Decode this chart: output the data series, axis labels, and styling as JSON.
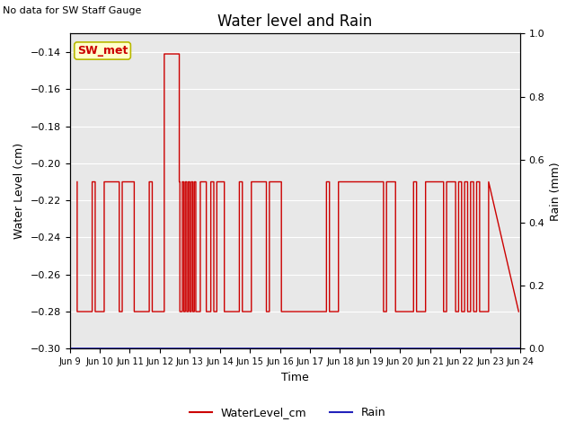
{
  "title": "Water level and Rain",
  "top_left_text": "No data for SW Staff Gauge",
  "ylabel_left": "Water Level (cm)",
  "ylabel_right": "Rain (mm)",
  "xlabel": "Time",
  "ylim_left": [
    -0.3,
    -0.13
  ],
  "ylim_right": [
    0.0,
    1.0
  ],
  "plot_bg_color": "#e8e8e8",
  "annotation_label": "SW_met",
  "water_color": "#cc0000",
  "rain_color": "#2222bb",
  "legend_entries": [
    "WaterLevel_cm",
    "Rain"
  ],
  "xtick_labels": [
    "Jun 9",
    "Jun 10",
    "Jun 11",
    "Jun 12",
    "Jun 13",
    "Jun 14",
    "Jun 15",
    "Jun 16",
    "Jun 17",
    "Jun 18",
    "Jun 19",
    "Jun 20",
    "Jun 21",
    "Jun 22",
    "Jun 23",
    "Jun 24"
  ],
  "xlim": [
    9.0,
    24.0
  ],
  "yticks_left": [
    -0.3,
    -0.28,
    -0.26,
    -0.24,
    -0.22,
    -0.2,
    -0.18,
    -0.16,
    -0.14
  ],
  "yticks_right": [
    0.0,
    0.2,
    0.4,
    0.6,
    0.8,
    1.0
  ],
  "water_x": [
    9.25,
    9.25,
    9.75,
    9.75,
    9.85,
    9.85,
    10.15,
    10.15,
    10.65,
    10.65,
    10.75,
    10.75,
    11.15,
    11.15,
    11.65,
    11.65,
    11.75,
    11.75,
    12.15,
    12.15,
    12.65,
    12.65,
    12.67,
    12.67,
    12.75,
    12.75,
    12.8,
    12.8,
    12.85,
    12.85,
    12.9,
    12.9,
    12.95,
    12.95,
    13.0,
    13.0,
    13.05,
    13.05,
    13.1,
    13.1,
    13.15,
    13.15,
    13.2,
    13.2,
    13.35,
    13.35,
    13.55,
    13.55,
    13.7,
    13.7,
    13.8,
    13.8,
    13.9,
    13.9,
    14.15,
    14.15,
    14.65,
    14.65,
    14.75,
    14.75,
    15.05,
    15.05,
    15.55,
    15.55,
    15.65,
    15.65,
    16.05,
    16.05,
    17.55,
    17.55,
    17.65,
    17.65,
    17.95,
    17.95,
    19.45,
    19.45,
    19.55,
    19.55,
    19.85,
    19.85,
    20.45,
    20.45,
    20.55,
    20.55,
    20.85,
    20.85,
    21.45,
    21.45,
    21.55,
    21.55,
    21.85,
    21.85,
    21.95,
    21.95,
    22.05,
    22.05,
    22.15,
    22.15,
    22.25,
    22.25,
    22.35,
    22.35,
    22.45,
    22.45,
    22.55,
    22.55,
    22.65,
    22.65,
    22.95,
    22.95,
    23.95
  ],
  "water_y": [
    -0.21,
    -0.28,
    -0.28,
    -0.21,
    -0.21,
    -0.28,
    -0.28,
    -0.21,
    -0.21,
    -0.28,
    -0.28,
    -0.21,
    -0.21,
    -0.28,
    -0.28,
    -0.21,
    -0.21,
    -0.28,
    -0.28,
    -0.141,
    -0.141,
    -0.21,
    -0.21,
    -0.28,
    -0.28,
    -0.21,
    -0.21,
    -0.28,
    -0.28,
    -0.21,
    -0.21,
    -0.28,
    -0.28,
    -0.21,
    -0.21,
    -0.28,
    -0.28,
    -0.21,
    -0.21,
    -0.28,
    -0.28,
    -0.21,
    -0.21,
    -0.28,
    -0.28,
    -0.21,
    -0.21,
    -0.28,
    -0.28,
    -0.21,
    -0.21,
    -0.28,
    -0.28,
    -0.21,
    -0.21,
    -0.28,
    -0.28,
    -0.21,
    -0.21,
    -0.28,
    -0.28,
    -0.21,
    -0.21,
    -0.28,
    -0.28,
    -0.21,
    -0.21,
    -0.28,
    -0.28,
    -0.21,
    -0.21,
    -0.28,
    -0.28,
    -0.21,
    -0.21,
    -0.28,
    -0.28,
    -0.21,
    -0.21,
    -0.28,
    -0.28,
    -0.21,
    -0.21,
    -0.28,
    -0.28,
    -0.21,
    -0.21,
    -0.28,
    -0.28,
    -0.21,
    -0.21,
    -0.28,
    -0.28,
    -0.21,
    -0.21,
    -0.28,
    -0.28,
    -0.21,
    -0.21,
    -0.28,
    -0.28,
    -0.21,
    -0.21,
    -0.28,
    -0.28,
    -0.21,
    -0.21,
    -0.28,
    -0.28,
    -0.21,
    -0.28
  ]
}
